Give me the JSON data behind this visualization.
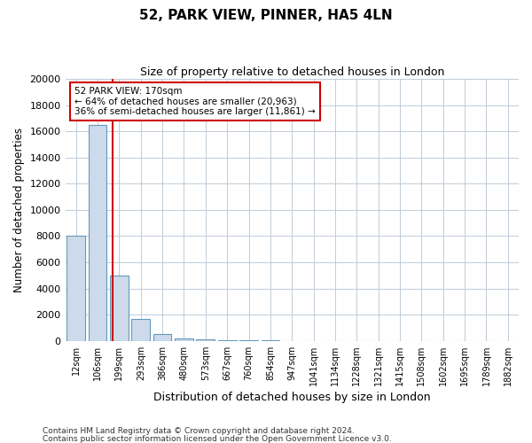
{
  "title1": "52, PARK VIEW, PINNER, HA5 4LN",
  "title2": "Size of property relative to detached houses in London",
  "xlabel": "Distribution of detached houses by size in London",
  "ylabel": "Number of detached properties",
  "categories": [
    "12sqm",
    "106sqm",
    "199sqm",
    "293sqm",
    "386sqm",
    "480sqm",
    "573sqm",
    "667sqm",
    "760sqm",
    "854sqm",
    "947sqm",
    "1041sqm",
    "1134sqm",
    "1228sqm",
    "1321sqm",
    "1415sqm",
    "1508sqm",
    "1602sqm",
    "1695sqm",
    "1789sqm",
    "1882sqm"
  ],
  "values": [
    8000,
    16500,
    5000,
    1700,
    500,
    200,
    100,
    80,
    50,
    30,
    0,
    0,
    0,
    0,
    0,
    0,
    0,
    0,
    0,
    0,
    0
  ],
  "bar_color": "#ccdaeb",
  "bar_edge_color": "#6699bb",
  "vline_color": "#cc0000",
  "vline_pos": 1.7,
  "annotation_text": "52 PARK VIEW: 170sqm\n← 64% of detached houses are smaller (20,963)\n36% of semi-detached houses are larger (11,861) →",
  "annotation_box_color": "#ffffff",
  "annotation_box_edge": "#cc0000",
  "ylim": [
    0,
    20000
  ],
  "yticks": [
    0,
    2000,
    4000,
    6000,
    8000,
    10000,
    12000,
    14000,
    16000,
    18000,
    20000
  ],
  "footnote1": "Contains HM Land Registry data © Crown copyright and database right 2024.",
  "footnote2": "Contains public sector information licensed under the Open Government Licence v3.0.",
  "background_color": "#ffffff",
  "grid_color": "#c0ccd8",
  "fig_width": 6.0,
  "fig_height": 5.0,
  "dpi": 100
}
